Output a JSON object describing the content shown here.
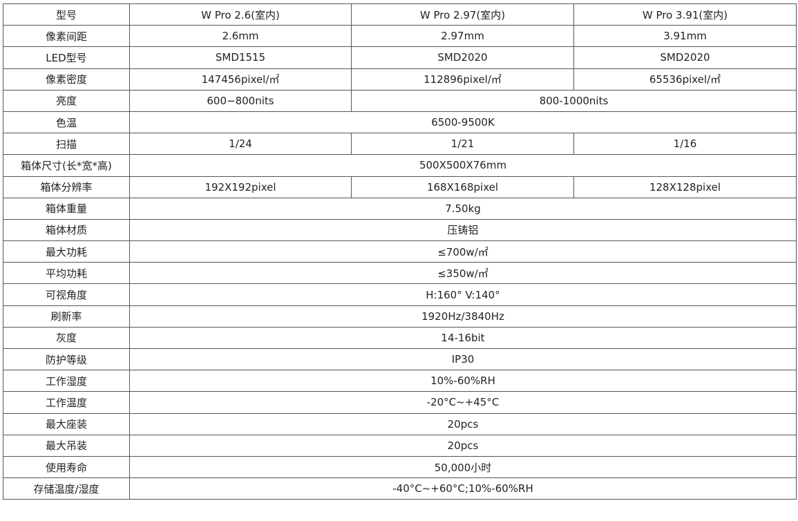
{
  "header": {
    "label": "型号",
    "models": [
      "W Pro 2.6(室内)",
      "W Pro 2.97(室内)",
      "W Pro 3.91(室内)"
    ]
  },
  "rows": [
    {
      "label": "像素间距",
      "values": [
        "2.6mm",
        "2.97mm",
        "3.91mm"
      ]
    },
    {
      "label": "LED型号",
      "values": [
        "SMD1515",
        "SMD2020",
        "SMD2020"
      ]
    },
    {
      "label": "像素密度",
      "values": [
        "147456pixel/㎡",
        "112896pixel/㎡",
        "65536pixel/㎡"
      ]
    },
    {
      "label": "亮度",
      "values": [
        "600−800nits",
        "800-1000nits"
      ]
    },
    {
      "label": "色温",
      "values": [
        "6500-9500K"
      ]
    },
    {
      "label": "扫描",
      "values": [
        "1/24",
        "1/21",
        "1/16"
      ]
    },
    {
      "label": "箱体尺寸(长*宽*高)",
      "values": [
        "500X500X76mm"
      ]
    },
    {
      "label": "箱体分辨率",
      "values": [
        "192X192pixel",
        "168X168pixel",
        "128X128pixel"
      ]
    },
    {
      "label": "箱体重量",
      "values": [
        "7.50kg"
      ]
    },
    {
      "label": "箱体材质",
      "values": [
        "压铸铝"
      ]
    },
    {
      "label": "最大功耗",
      "values": [
        "≤700w/㎡"
      ]
    },
    {
      "label": "平均功耗",
      "values": [
        "≤350w/㎡"
      ]
    },
    {
      "label": "可视角度",
      "values": [
        "H:160° V:140°"
      ]
    },
    {
      "label": "刷新率",
      "values": [
        "1920Hz/3840Hz"
      ]
    },
    {
      "label": "灰度",
      "values": [
        "14-16bit"
      ]
    },
    {
      "label": "防护等级",
      "values": [
        "IP30"
      ]
    },
    {
      "label": "工作湿度",
      "values": [
        "10%-60%RH"
      ]
    },
    {
      "label": "工作温度",
      "values": [
        "-20°C~+45°C"
      ]
    },
    {
      "label": "最大座装",
      "values": [
        "20pcs"
      ]
    },
    {
      "label": "最大吊装",
      "values": [
        "20pcs"
      ]
    },
    {
      "label": "使用寿命",
      "values": [
        "50,000小时"
      ]
    },
    {
      "label": "存储温度/湿度",
      "values": [
        "-40°C~+60°C;10%-60%RH"
      ]
    }
  ]
}
